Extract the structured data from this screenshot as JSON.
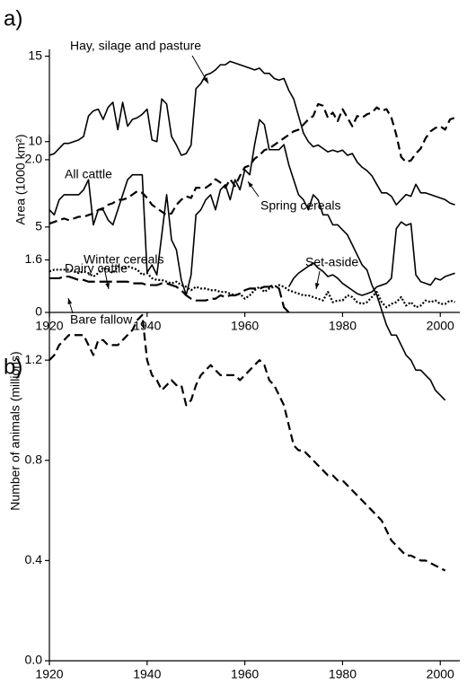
{
  "chart_data": [
    {
      "type": "line",
      "panel_label": "a)",
      "y_label": "Area (1000 km²)",
      "x": [
        1920,
        1921,
        1922,
        1923,
        1924,
        1925,
        1926,
        1927,
        1928,
        1929,
        1930,
        1931,
        1932,
        1933,
        1934,
        1935,
        1936,
        1937,
        1938,
        1939,
        1940,
        1941,
        1942,
        1943,
        1944,
        1945,
        1946,
        1947,
        1948,
        1949,
        1950,
        1951,
        1952,
        1953,
        1954,
        1955,
        1956,
        1957,
        1958,
        1959,
        1960,
        1961,
        1962,
        1963,
        1964,
        1965,
        1966,
        1967,
        1968,
        1969,
        1970,
        1971,
        1972,
        1973,
        1974,
        1975,
        1976,
        1977,
        1978,
        1979,
        1980,
        1981,
        1982,
        1983,
        1984,
        1985,
        1986,
        1987,
        1988,
        1989,
        1990,
        1991,
        1992,
        1993,
        1994,
        1995,
        1996,
        1997,
        1998,
        1999,
        2000,
        2001,
        2002,
        2003
      ],
      "xlim": [
        1920,
        2004
      ],
      "xticks": [
        1920,
        1940,
        1960,
        1980,
        2000
      ],
      "ylim": [
        0,
        15.4
      ],
      "yticks": [
        0,
        5,
        10,
        15
      ],
      "series": [
        {
          "name": "Hay, silage and pasture",
          "color": "#000000",
          "style": "solid",
          "values": [
            9.2,
            9.3,
            9.6,
            9.9,
            9.9,
            10.0,
            10.1,
            10.3,
            11.5,
            11.8,
            11.9,
            11.3,
            12.0,
            12.3,
            10.7,
            12.3,
            10.9,
            11.3,
            11.4,
            11.6,
            11.9,
            10.1,
            10.0,
            12.5,
            12.2,
            10.3,
            9.8,
            9.2,
            9.3,
            9.8,
            13.1,
            13.4,
            13.9,
            14.0,
            14.2,
            14.5,
            14.5,
            14.7,
            14.6,
            14.5,
            14.4,
            14.3,
            14.2,
            14.3,
            14.0,
            14.0,
            13.7,
            13.6,
            13.7,
            13.0,
            12.5,
            11.5,
            10.5,
            10.0,
            9.7,
            9.8,
            9.6,
            9.4,
            9.5,
            9.4,
            9.5,
            9.2,
            9.3,
            8.8,
            8.5,
            8.3,
            8.0,
            7.5,
            7.0,
            7.0,
            6.8,
            6.3,
            6.6,
            6.9,
            6.8,
            7.5,
            7.0,
            7.0,
            6.9,
            6.8,
            6.7,
            6.6,
            6.4,
            6.3
          ]
        },
        {
          "name": "Spring cereals",
          "color": "#000000",
          "style": "dash",
          "values": [
            5.2,
            5.3,
            5.4,
            5.5,
            5.4,
            5.5,
            5.6,
            5.6,
            5.7,
            5.8,
            6.0,
            6.1,
            6.3,
            6.4,
            6.6,
            6.6,
            6.7,
            6.9,
            7.1,
            7.0,
            6.7,
            6.3,
            6.1,
            5.9,
            5.7,
            5.8,
            6.3,
            6.6,
            6.8,
            6.7,
            7.3,
            7.3,
            7.3,
            7.5,
            7.8,
            7.6,
            7.3,
            7.8,
            7.4,
            8.0,
            8.5,
            8.6,
            9.0,
            9.2,
            9.5,
            9.6,
            9.8,
            10.0,
            10.2,
            10.4,
            10.6,
            10.7,
            11.0,
            11.3,
            11.5,
            12.2,
            12.1,
            11.4,
            11.7,
            11.2,
            11.9,
            11.4,
            10.9,
            11.5,
            11.4,
            11.6,
            11.7,
            12.0,
            11.8,
            11.9,
            11.4,
            10.4,
            9.1,
            8.8,
            8.9,
            9.3,
            9.6,
            10.2,
            10.6,
            10.8,
            10.9,
            10.7,
            11.3,
            11.4
          ]
        },
        {
          "name": "Winter cereals",
          "color": "#000000",
          "style": "dot",
          "values": [
            2.4,
            2.5,
            2.5,
            2.5,
            2.5,
            2.4,
            2.3,
            2.4,
            2.3,
            2.1,
            2.3,
            2.6,
            2.5,
            2.3,
            2.7,
            2.6,
            2.7,
            2.6,
            2.5,
            2.2,
            2.3,
            2.0,
            1.9,
            1.9,
            1.8,
            1.7,
            1.8,
            1.6,
            1.5,
            1.3,
            1.5,
            1.4,
            1.4,
            1.3,
            1.3,
            1.2,
            1.2,
            1.1,
            1.0,
            1.1,
            0.8,
            1.0,
            1.3,
            1.5,
            1.2,
            1.4,
            1.5,
            1.6,
            1.5,
            1.3,
            1.2,
            1.1,
            1.0,
            1.0,
            0.9,
            0.8,
            0.7,
            1.2,
            0.6,
            0.7,
            0.7,
            1.0,
            0.9,
            0.6,
            0.5,
            0.6,
            0.9,
            1.2,
            0.6,
            0.3,
            0.5,
            0.6,
            0.9,
            0.4,
            0.6,
            0.3,
            0.4,
            0.7,
            0.6,
            0.7,
            0.5,
            0.5,
            0.7,
            0.6
          ]
        },
        {
          "name": "Set-aside",
          "color": "#000000",
          "style": "solid",
          "values": [
            null,
            null,
            null,
            null,
            null,
            null,
            null,
            null,
            null,
            null,
            null,
            null,
            null,
            null,
            null,
            null,
            null,
            null,
            null,
            null,
            null,
            null,
            null,
            null,
            null,
            null,
            null,
            null,
            null,
            null,
            null,
            null,
            null,
            null,
            null,
            null,
            null,
            null,
            null,
            null,
            null,
            null,
            null,
            null,
            null,
            null,
            null,
            null,
            null,
            1.5,
            2.0,
            2.3,
            2.5,
            2.7,
            2.9,
            2.6,
            2.4,
            2.1,
            2.2,
            2.0,
            1.7,
            1.5,
            1.3,
            1.1,
            1.0,
            1.1,
            1.2,
            1.5,
            1.6,
            1.7,
            2.0,
            4.9,
            5.3,
            5.1,
            5.2,
            2.2,
            1.8,
            1.7,
            1.6,
            2.0,
            1.9,
            2.1,
            2.2,
            2.3
          ]
        },
        {
          "name": "Bare fallow",
          "color": "#000000",
          "style": "longdash",
          "values": [
            2.0,
            2.0,
            2.0,
            2.1,
            2.1,
            2.0,
            1.9,
            1.9,
            1.8,
            1.8,
            1.8,
            1.8,
            1.8,
            1.8,
            1.8,
            1.8,
            1.8,
            1.7,
            1.7,
            1.7,
            1.6,
            1.6,
            1.6,
            1.7,
            1.7,
            1.6,
            1.5,
            1.3,
            1.0,
            0.8,
            0.7,
            0.7,
            0.7,
            0.8,
            0.8,
            1.0,
            0.9,
            1.0,
            1.0,
            1.1,
            1.3,
            1.4,
            1.4,
            1.4,
            1.5,
            1.5,
            1.6,
            1.4,
            0.3,
            0,
            null,
            null,
            null,
            null,
            null,
            null,
            null,
            null,
            null,
            null,
            null,
            null,
            null,
            null,
            null,
            null,
            null,
            null,
            null,
            null,
            null,
            null,
            null,
            null,
            null,
            null,
            null,
            null,
            null,
            null,
            null,
            null,
            null,
            null
          ]
        }
      ]
    },
    {
      "type": "line",
      "panel_label": "b)",
      "y_label": "Number of animals (millions)",
      "x": [
        1920,
        1921,
        1922,
        1923,
        1924,
        1925,
        1926,
        1927,
        1928,
        1929,
        1930,
        1931,
        1932,
        1933,
        1934,
        1935,
        1936,
        1937,
        1938,
        1939,
        1940,
        1941,
        1942,
        1943,
        1944,
        1945,
        1946,
        1947,
        1948,
        1949,
        1950,
        1951,
        1952,
        1953,
        1954,
        1955,
        1956,
        1957,
        1958,
        1959,
        1960,
        1961,
        1962,
        1963,
        1964,
        1965,
        1966,
        1967,
        1968,
        1969,
        1970,
        1971,
        1972,
        1973,
        1974,
        1975,
        1976,
        1977,
        1978,
        1979,
        1980,
        1981,
        1982,
        1983,
        1984,
        1985,
        1986,
        1987,
        1988,
        1989,
        1990,
        1991,
        1992,
        1993,
        1994,
        1995,
        1996,
        1997,
        1998,
        1999,
        2000,
        2001
      ],
      "xlim": [
        1920,
        2004
      ],
      "xticks": [
        1920,
        1940,
        1960,
        1980,
        2000
      ],
      "ylim": [
        0,
        2.1
      ],
      "yticks": [
        {
          "value": 0,
          "label": "0.0"
        },
        0.4,
        0.8,
        1.2,
        1.6,
        {
          "value": 2,
          "label": "2.0"
        }
      ],
      "series": [
        {
          "name": "All cattle",
          "color": "#000000",
          "style": "solid",
          "values": [
            1.8,
            1.78,
            1.84,
            1.86,
            1.86,
            1.86,
            1.86,
            1.88,
            1.92,
            1.74,
            1.8,
            1.8,
            1.76,
            1.74,
            1.8,
            1.86,
            1.92,
            1.94,
            1.94,
            1.94,
            1.55,
            1.58,
            1.54,
            1.7,
            1.86,
            1.68,
            1.64,
            1.52,
            1.46,
            1.54,
            1.78,
            1.8,
            1.84,
            1.86,
            1.8,
            1.88,
            1.9,
            1.84,
            1.92,
            1.88,
            1.96,
            1.94,
            2.06,
            2.16,
            2.14,
            2.04,
            2.04,
            2.04,
            2.06,
            1.98,
            1.92,
            1.86,
            1.84,
            1.8,
            1.86,
            1.84,
            1.78,
            1.78,
            1.74,
            1.74,
            1.72,
            1.7,
            1.66,
            1.62,
            1.58,
            1.56,
            1.5,
            1.46,
            1.4,
            1.34,
            1.3,
            1.3,
            1.26,
            1.22,
            1.2,
            1.16,
            1.16,
            1.14,
            1.12,
            1.08,
            1.06,
            1.04
          ]
        },
        {
          "name": "Dairy cattle",
          "color": "#000000",
          "style": "dash",
          "values": [
            1.2,
            1.22,
            1.26,
            1.28,
            1.3,
            1.3,
            1.3,
            1.3,
            1.26,
            1.22,
            1.28,
            1.28,
            1.26,
            1.26,
            1.26,
            1.28,
            1.3,
            1.32,
            1.36,
            1.38,
            1.2,
            1.14,
            1.12,
            1.08,
            1.1,
            1.12,
            1.1,
            1.1,
            1.02,
            1.04,
            1.1,
            1.14,
            1.16,
            1.18,
            1.16,
            1.14,
            1.14,
            1.14,
            1.14,
            1.12,
            1.14,
            1.16,
            1.18,
            1.2,
            1.18,
            1.12,
            1.1,
            1.06,
            1.02,
            0.94,
            0.86,
            0.84,
            0.84,
            0.82,
            0.8,
            0.78,
            0.76,
            0.74,
            0.74,
            0.72,
            0.72,
            0.7,
            0.68,
            0.66,
            0.64,
            0.62,
            0.6,
            0.58,
            0.56,
            0.52,
            0.48,
            0.46,
            0.44,
            0.42,
            0.42,
            0.41,
            0.4,
            0.4,
            0.39,
            0.38,
            0.37,
            0.36
          ]
        }
      ]
    }
  ]
}
